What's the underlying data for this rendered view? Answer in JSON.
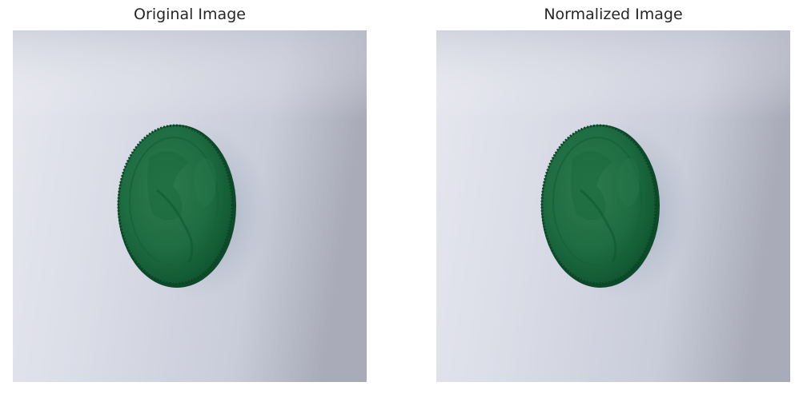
{
  "figure": {
    "panels": [
      {
        "title": "Original Image",
        "image": {
          "subject": "green-bottle-cap-photo",
          "background_color": "#cfd2df",
          "cap_color": "#1c6a3f"
        }
      },
      {
        "title": "Normalized Image",
        "image": {
          "subject": "green-bottle-cap-photo",
          "background_color": "#cfd2df",
          "cap_color": "#1c6a3f"
        }
      }
    ]
  }
}
